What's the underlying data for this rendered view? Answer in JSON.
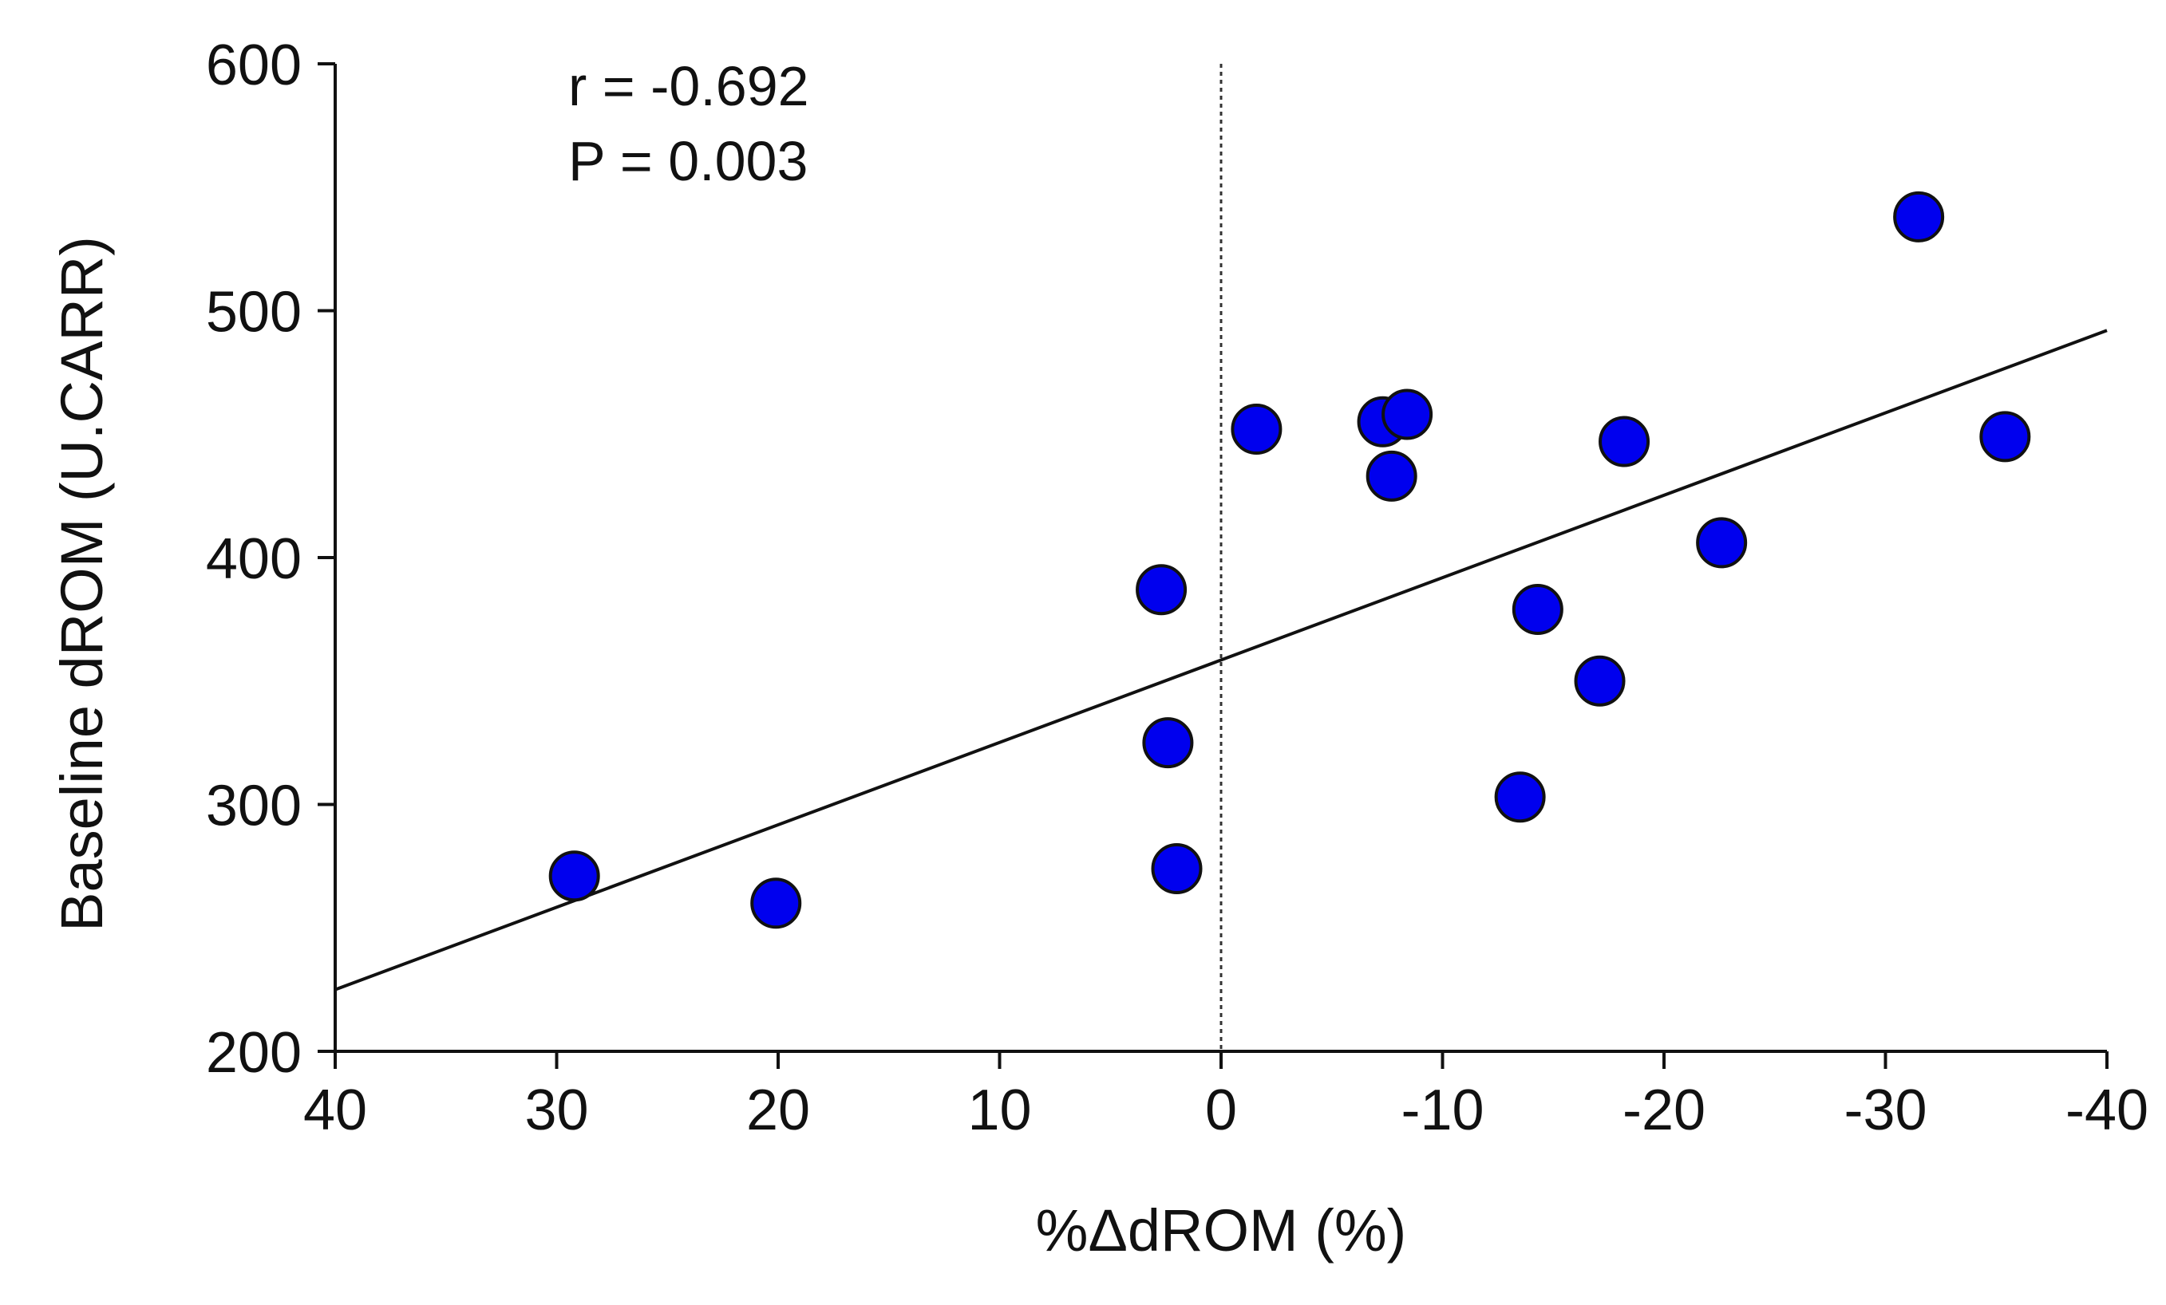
{
  "chart_data": {
    "type": "scatter",
    "xlabel": "%ΔdROM (%)",
    "ylabel": "Baseline dROM (U.CARR)",
    "xlim": [
      40,
      -40
    ],
    "ylim": [
      200,
      600
    ],
    "x_reversed": true,
    "xticks": [
      40,
      30,
      20,
      10,
      0,
      -10,
      -20,
      -30,
      -40
    ],
    "xtick_labels": [
      "40",
      "30",
      "20",
      "10",
      "0",
      "-10",
      "-20",
      "-30",
      "-40"
    ],
    "yticks": [
      200,
      300,
      400,
      500,
      600
    ],
    "ytick_labels": [
      "200",
      "300",
      "400",
      "500",
      "600"
    ],
    "grid": false,
    "annotations": [
      "r = -0.692",
      "P = 0.003"
    ],
    "reference_line": {
      "axis": "x",
      "value": 0,
      "style": "dotted"
    },
    "regression_line": {
      "x": [
        40,
        -40
      ],
      "y": [
        225,
        492
      ]
    },
    "marker_color": "#0000ee",
    "points": [
      {
        "x": 29.2,
        "y": 271
      },
      {
        "x": 20.1,
        "y": 260
      },
      {
        "x": 2.7,
        "y": 387
      },
      {
        "x": 2.4,
        "y": 325
      },
      {
        "x": 2.0,
        "y": 274
      },
      {
        "x": -1.6,
        "y": 452
      },
      {
        "x": -7.3,
        "y": 455
      },
      {
        "x": -8.4,
        "y": 458
      },
      {
        "x": -7.7,
        "y": 433
      },
      {
        "x": -13.5,
        "y": 303
      },
      {
        "x": -14.3,
        "y": 379
      },
      {
        "x": -17.1,
        "y": 350
      },
      {
        "x": -18.2,
        "y": 447
      },
      {
        "x": -22.6,
        "y": 406
      },
      {
        "x": -31.5,
        "y": 538
      },
      {
        "x": -35.4,
        "y": 449
      }
    ]
  }
}
